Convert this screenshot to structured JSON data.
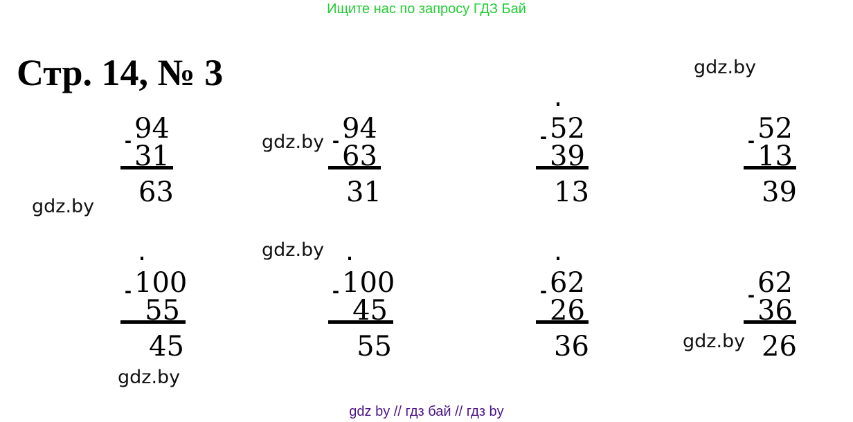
{
  "header": {
    "promo_text": "Ищите нас по запросу ГДЗ Бай"
  },
  "title": "Стр. 14, № 3",
  "watermark": "gdz.by",
  "problems": [
    {
      "minuend": "94",
      "subtrahend": "31",
      "result": "63",
      "borrow_dot": false
    },
    {
      "minuend": "94",
      "subtrahend": "63",
      "result": "31",
      "borrow_dot": false
    },
    {
      "minuend": "52",
      "subtrahend": "39",
      "result": "13",
      "borrow_dot": true
    },
    {
      "minuend": "52",
      "subtrahend": "13",
      "result": "39",
      "borrow_dot": false
    },
    {
      "minuend": "100",
      "subtrahend": "55",
      "result": "45",
      "borrow_dot": true
    },
    {
      "minuend": "100",
      "subtrahend": "45",
      "result": "55",
      "borrow_dot": true
    },
    {
      "minuend": "62",
      "subtrahend": "26",
      "result": "36",
      "borrow_dot": true
    },
    {
      "minuend": "62",
      "subtrahend": "36",
      "result": "26",
      "borrow_dot": false
    }
  ],
  "footer": {
    "text": "gdz by  //  гдз бай  //  гдз by"
  },
  "colors": {
    "promo": "#22cc33",
    "footer": "#4b1585",
    "text": "#000000"
  }
}
